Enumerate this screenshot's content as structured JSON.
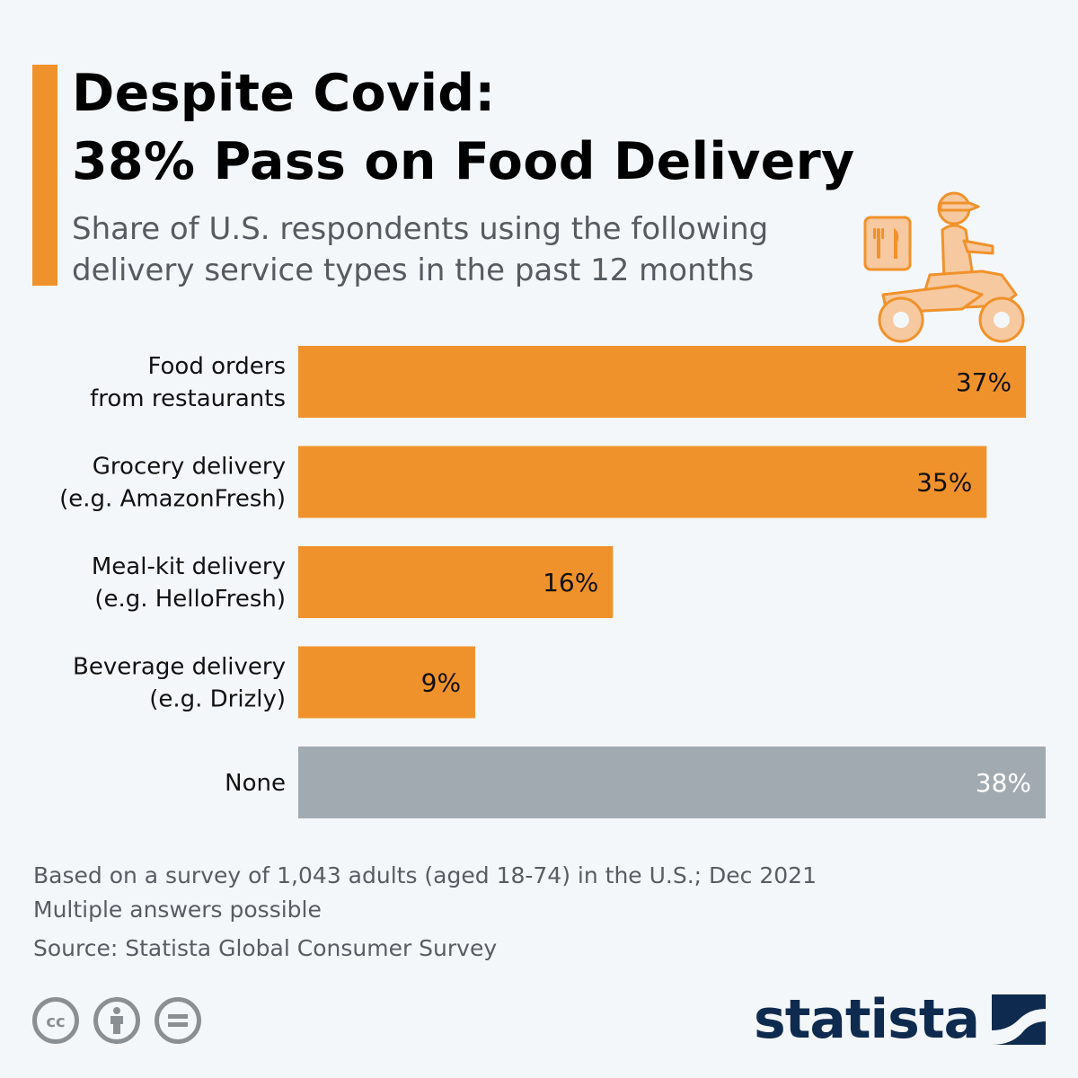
{
  "header": {
    "title_line1": "Despite Covid:",
    "title_line2": "38% Pass on Food Delivery",
    "subtitle_line1": "Share of U.S. respondents using the following",
    "subtitle_line2": "delivery service types in the past 12 months"
  },
  "colors": {
    "accent": "#f0922b",
    "bar_primary": "#f0922b",
    "bar_none": "#a1aab1",
    "brand": "#0e2b4f",
    "icon_fill": "#f6c9a0",
    "icon_stroke": "#f0922b"
  },
  "chart_data": {
    "type": "bar",
    "orientation": "horizontal",
    "title": "Despite Covid: 38% Pass on Food Delivery",
    "xlim": [
      0,
      38
    ],
    "grid": false,
    "categories": [
      [
        "Food orders",
        "from restaurants"
      ],
      [
        "Grocery delivery",
        "(e.g. AmazonFresh)"
      ],
      [
        "Meal-kit delivery",
        "(e.g. HelloFresh)"
      ],
      [
        "Beverage delivery",
        "(e.g. Drizly)"
      ],
      [
        "None"
      ]
    ],
    "values": [
      37,
      35,
      16,
      9,
      38
    ],
    "value_labels": [
      "37%",
      "35%",
      "16%",
      "9%",
      "38%"
    ],
    "bar_colors": [
      "#f0922b",
      "#f0922b",
      "#f0922b",
      "#f0922b",
      "#a1aab1"
    ],
    "label_colors": [
      "#111111",
      "#111111",
      "#111111",
      "#111111",
      "#ffffff"
    ]
  },
  "footer": {
    "note_line1": "Based on a survey of 1,043 adults (aged 18-74) in the U.S.; Dec 2021",
    "note_line2": "Multiple answers possible",
    "source": "Source: Statista Global Consumer Survey",
    "brand": "statista",
    "license_icons": [
      "cc-icon",
      "attribution-icon",
      "no-derivatives-icon"
    ]
  }
}
